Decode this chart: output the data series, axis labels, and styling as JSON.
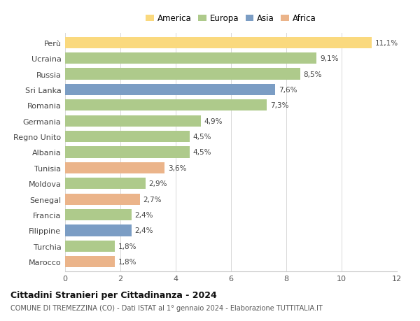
{
  "countries": [
    "Perù",
    "Ucraina",
    "Russia",
    "Sri Lanka",
    "Romania",
    "Germania",
    "Regno Unito",
    "Albania",
    "Tunisia",
    "Moldova",
    "Senegal",
    "Francia",
    "Filippine",
    "Turchia",
    "Marocco"
  ],
  "values": [
    11.1,
    9.1,
    8.5,
    7.6,
    7.3,
    4.9,
    4.5,
    4.5,
    3.6,
    2.9,
    2.7,
    2.4,
    2.4,
    1.8,
    1.8
  ],
  "labels": [
    "11,1%",
    "9,1%",
    "8,5%",
    "7,6%",
    "7,3%",
    "4,9%",
    "4,5%",
    "4,5%",
    "3,6%",
    "2,9%",
    "2,7%",
    "2,4%",
    "2,4%",
    "1,8%",
    "1,8%"
  ],
  "continents": [
    "America",
    "Europa",
    "Europa",
    "Asia",
    "Europa",
    "Europa",
    "Europa",
    "Europa",
    "Africa",
    "Europa",
    "Africa",
    "Europa",
    "Asia",
    "Europa",
    "Africa"
  ],
  "colors": {
    "America": "#FAD97E",
    "Europa": "#AECA8B",
    "Asia": "#7B9DC4",
    "Africa": "#EBB48A"
  },
  "legend_order": [
    "America",
    "Europa",
    "Asia",
    "Africa"
  ],
  "xlim": [
    0,
    12
  ],
  "xticks": [
    0,
    2,
    4,
    6,
    8,
    10,
    12
  ],
  "title": "Cittadini Stranieri per Cittadinanza - 2024",
  "subtitle": "COMUNE DI TREMEZZINA (CO) - Dati ISTAT al 1° gennaio 2024 - Elaborazione TUTTITALIA.IT",
  "background_color": "#ffffff",
  "bar_height": 0.72
}
